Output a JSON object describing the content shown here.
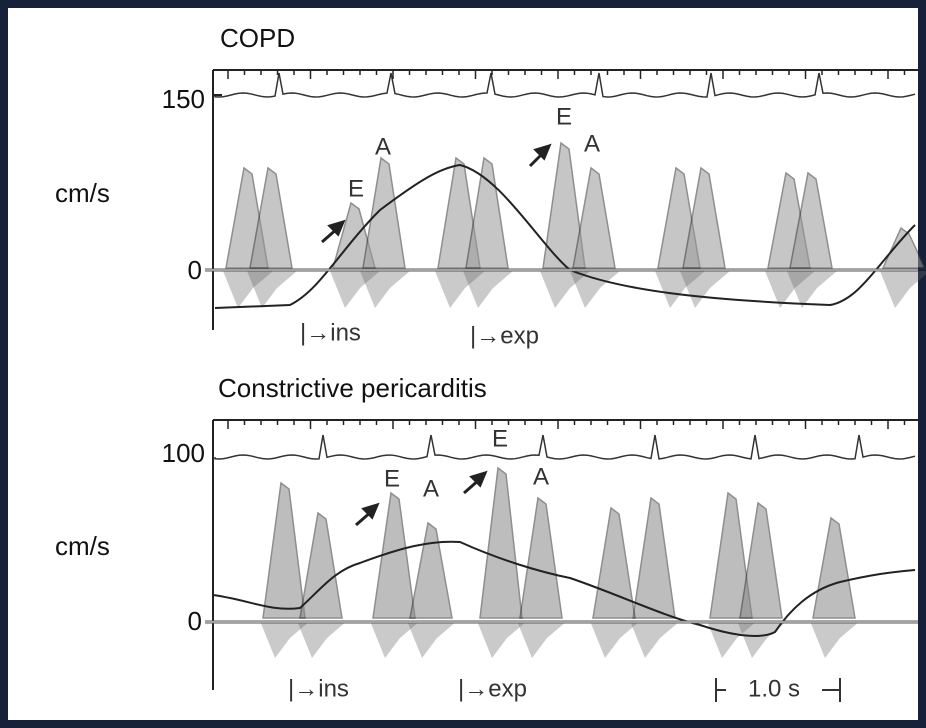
{
  "panels": [
    {
      "title": "COPD",
      "y_label": "cm/s",
      "ticks": [
        150,
        0
      ],
      "annotations": [
        "E",
        "A",
        "E",
        "A"
      ],
      "markers": [
        "|→ins",
        "|→exp"
      ]
    },
    {
      "title": "Constrictive pericarditis",
      "y_label": "cm/s",
      "ticks": [
        100,
        0
      ],
      "annotations": [
        "E",
        "A",
        "E",
        "A"
      ],
      "markers": [
        "|→ins",
        "|→exp"
      ],
      "scale_bar": "1.0 s"
    }
  ]
}
